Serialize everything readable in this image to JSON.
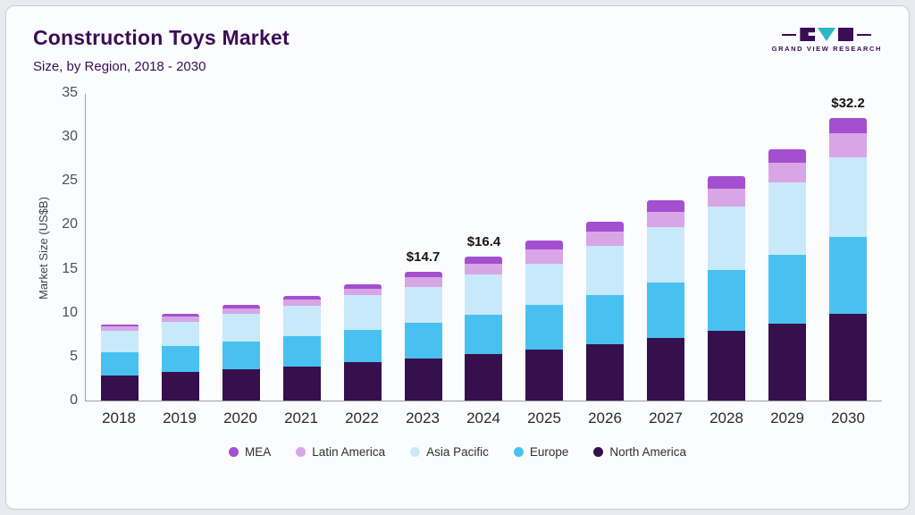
{
  "header": {
    "title": "Construction Toys Market",
    "subtitle": "Size, by Region, 2018 - 2030",
    "logo_text": "GRAND VIEW RESEARCH"
  },
  "chart_data": {
    "type": "bar",
    "stacked": true,
    "title": "Construction Toys Market Size, by Region, 2018 - 2030",
    "xlabel": "",
    "ylabel": "Market Size (US$B)",
    "ylim": [
      0,
      35
    ],
    "ytick_step": 5,
    "grid": false,
    "legend_position": "bottom",
    "categories": [
      "2018",
      "2019",
      "2020",
      "2021",
      "2022",
      "2023",
      "2024",
      "2025",
      "2026",
      "2027",
      "2028",
      "2029",
      "2030"
    ],
    "series": [
      {
        "name": "North America",
        "color": "#35104d",
        "values": [
          2.9,
          3.3,
          3.6,
          3.9,
          4.4,
          4.8,
          5.3,
          5.8,
          6.4,
          7.1,
          7.9,
          8.8,
          9.9
        ]
      },
      {
        "name": "Europe",
        "color": "#49c1f0",
        "values": [
          2.6,
          2.9,
          3.1,
          3.4,
          3.6,
          4.1,
          4.5,
          5.1,
          5.6,
          6.3,
          7.0,
          7.8,
          8.7
        ]
      },
      {
        "name": "Asia Pacific",
        "color": "#c8e9fa",
        "values": [
          2.4,
          2.8,
          3.2,
          3.5,
          4.0,
          4.0,
          4.5,
          4.7,
          5.6,
          6.3,
          7.2,
          8.2,
          9.1
        ]
      },
      {
        "name": "Latin America",
        "color": "#d8a6e6",
        "values": [
          0.5,
          0.6,
          0.6,
          0.7,
          0.7,
          1.1,
          1.3,
          1.6,
          1.6,
          1.8,
          2.0,
          2.3,
          2.7
        ]
      },
      {
        "name": "MEA",
        "color": "#a44fd0",
        "values": [
          0.3,
          0.3,
          0.4,
          0.4,
          0.5,
          0.7,
          0.8,
          1.0,
          1.2,
          1.3,
          1.4,
          1.5,
          1.8
        ]
      }
    ],
    "totals_shown": [
      {
        "category": "2023",
        "text": "$14.7"
      },
      {
        "category": "2024",
        "text": "$16.4"
      },
      {
        "category": "2030",
        "text": "$32.2"
      }
    ],
    "legend_order": [
      "MEA",
      "Latin America",
      "Asia Pacific",
      "Europe",
      "North America"
    ]
  }
}
